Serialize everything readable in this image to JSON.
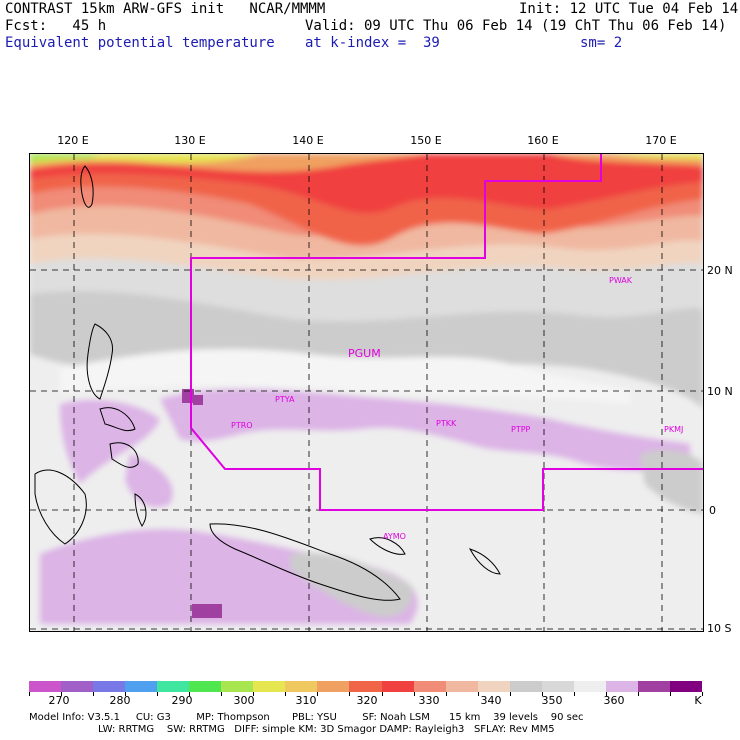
{
  "header": {
    "line1_left": "CONTRAST 15km ARW-GFS init   NCAR/MMMM",
    "line1_right": "Init: 12 UTC Tue 04 Feb 14",
    "fcst": "Fcst:   45 h",
    "valid": "Valid: 09 UTC Thu 06 Feb 14 (19 ChT Thu 06 Feb 14)",
    "field": "Equivalent potential temperature",
    "level": "at k-index =  39",
    "smooth": "sm= 2"
  },
  "map": {
    "lon_labels": [
      "120 E",
      "130 E",
      "140 E",
      "150 E",
      "160 E",
      "170 E"
    ],
    "lat_labels": [
      "20 N",
      "10 N",
      "0",
      "10 S"
    ],
    "stations": [
      "PWAK",
      "PGUM",
      "PTYA",
      "PTRO",
      "PTKK",
      "PTPP",
      "PKMJ",
      "AYMO"
    ]
  },
  "colorbar": {
    "labels": [
      "270",
      "280",
      "290",
      "300",
      "310",
      "320",
      "330",
      "340",
      "350",
      "360"
    ],
    "unit": "K",
    "colors": [
      "#cc55cc",
      "#a060c8",
      "#7878e6",
      "#50a0f0",
      "#40e6a0",
      "#50e650",
      "#a8e650",
      "#e6e650",
      "#f0c860",
      "#f0a060",
      "#f06448",
      "#f04040",
      "#f08c78",
      "#f0b8a0",
      "#f0d4c0",
      "#cccccc",
      "#d8d8d8",
      "#eeeeee",
      "#dcb4e6",
      "#a040a0",
      "#800080"
    ]
  },
  "model_info": {
    "line1": "Model Info: V3.5.1     CU: G3        MP: Thompson       PBL: YSU        SF: Noah LSM      15 km    39 levels    90 sec",
    "line2": "LW: RRTMG    SW: RRTMG   DIFF: simple KM: 3D Smagor DAMP: Rayleigh3   SFLAY: Rev MM5"
  }
}
